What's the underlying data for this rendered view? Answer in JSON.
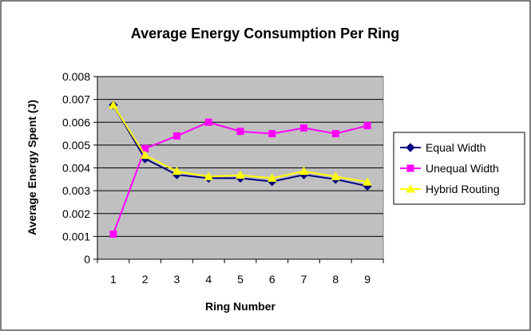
{
  "chart_data": {
    "type": "line",
    "title": "Average Energy Consumption Per Ring",
    "xlabel": "Ring Number",
    "ylabel": "Average Energy Spent (J)",
    "categories": [
      "1",
      "2",
      "3",
      "4",
      "5",
      "6",
      "7",
      "8",
      "9"
    ],
    "y_ticks": [
      "0",
      "0.001",
      "0.002",
      "0.003",
      "0.004",
      "0.005",
      "0.006",
      "0.007",
      "0.008"
    ],
    "ylim": [
      0,
      0.008
    ],
    "grid": "horizontal major gridlines",
    "legend_position": "right",
    "plot_background": "#c0c0c0",
    "series": [
      {
        "name": "Equal Width",
        "color": "#000080",
        "marker": "diamond",
        "values": [
          0.00675,
          0.0044,
          0.0037,
          0.00355,
          0.00355,
          0.0034,
          0.0037,
          0.0035,
          0.0032
        ]
      },
      {
        "name": "Unequal Width",
        "color": "#ff00ff",
        "marker": "square",
        "values": [
          0.0011,
          0.00485,
          0.0054,
          0.006,
          0.0056,
          0.0055,
          0.00575,
          0.0055,
          0.00585
        ]
      },
      {
        "name": "Hybrid Routing",
        "color": "#ffff00",
        "marker": "triangle",
        "values": [
          0.00675,
          0.00455,
          0.00385,
          0.00362,
          0.00368,
          0.00355,
          0.00385,
          0.00362,
          0.00338
        ]
      }
    ]
  }
}
